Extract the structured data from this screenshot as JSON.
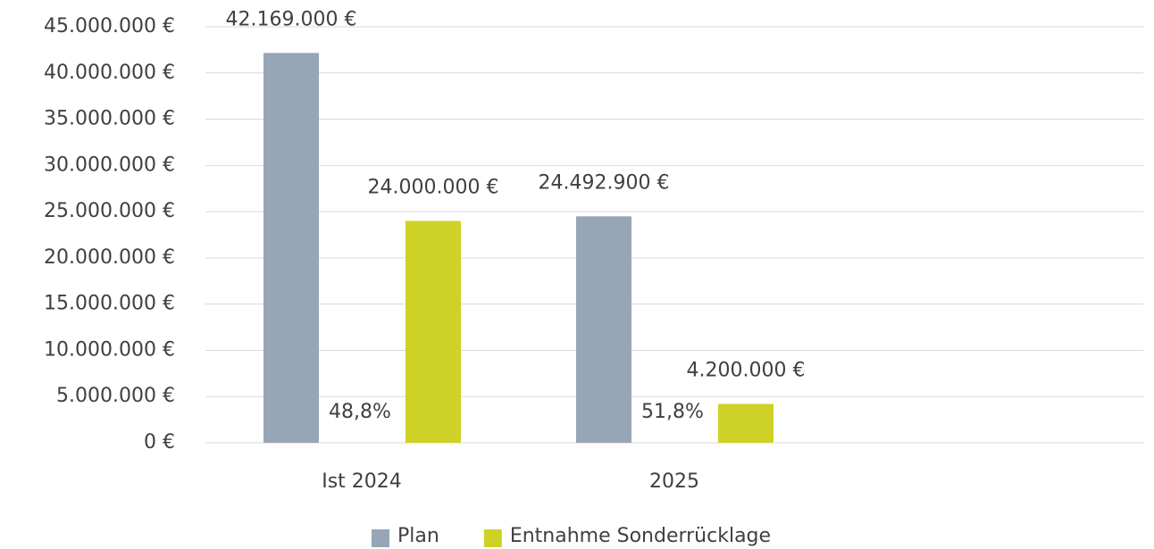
{
  "chart_data": {
    "type": "bar",
    "categories": [
      "Ist 2024",
      "2025",
      null
    ],
    "series": [
      {
        "name": "Plan",
        "color": "#97a6b6",
        "values": [
          42169000,
          24492900,
          null
        ],
        "value_labels": [
          "42.169.000 €",
          "24.492.900 €",
          null
        ]
      },
      {
        "name": "Entnahme Sonderrücklage",
        "color": "#cfd226",
        "values": [
          24000000,
          4200000,
          null
        ],
        "value_labels": [
          "24.000.000 €",
          "4.200.000 €",
          null
        ]
      }
    ],
    "annotations": [
      "48,8%",
      "51,8%"
    ],
    "ylim": [
      0,
      45000000
    ],
    "yticks": [
      {
        "value": 0,
        "label": "0 €"
      },
      {
        "value": 5000000,
        "label": "5.000.000 €"
      },
      {
        "value": 10000000,
        "label": "10.000.000 €"
      },
      {
        "value": 15000000,
        "label": "15.000.000 €"
      },
      {
        "value": 20000000,
        "label": "20.000.000 €"
      },
      {
        "value": 25000000,
        "label": "25.000.000 €"
      },
      {
        "value": 30000000,
        "label": "30.000.000 €"
      },
      {
        "value": 35000000,
        "label": "35.000.000 €"
      },
      {
        "value": 40000000,
        "label": "40.000.000 €"
      },
      {
        "value": 45000000,
        "label": "45.000.000 €"
      }
    ],
    "grid": true,
    "legend": "bottom"
  }
}
